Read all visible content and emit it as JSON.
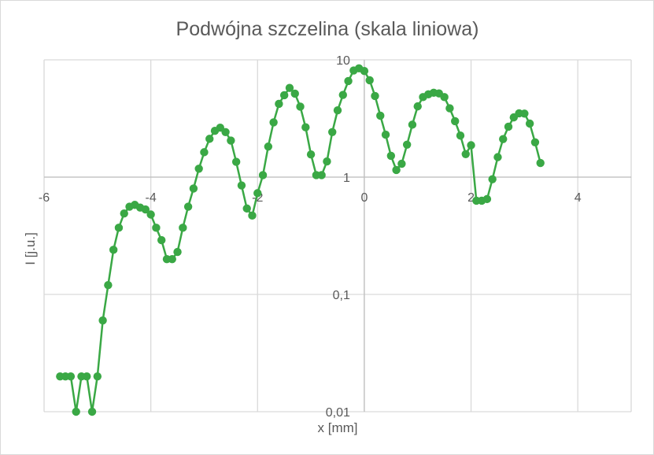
{
  "chart_data": {
    "type": "scatter",
    "title": "Podwójna szczelina (skala liniowa)",
    "xlabel": "x [mm]",
    "ylabel": "I [j.u.]",
    "xlim": [
      -6,
      5
    ],
    "ylim": [
      0.01,
      10
    ],
    "y_scale": "log",
    "x_ticks": [
      -6,
      -4,
      -2,
      0,
      2,
      4
    ],
    "x_tick_labels": [
      "-6",
      "-4",
      "-2",
      "0",
      "2",
      "4"
    ],
    "y_ticks": [
      0.01,
      0.1,
      1,
      10
    ],
    "y_tick_labels": [
      "0,01",
      "0,1",
      "1",
      "10"
    ],
    "grid": true,
    "legend": false,
    "marker_color": "#3aa845",
    "series": [
      {
        "x": [
          -5.7,
          -5.6,
          -5.5,
          -5.4,
          -5.3,
          -5.2,
          -5.1,
          -5.0,
          -4.9,
          -4.8,
          -4.7,
          -4.6,
          -4.5,
          -4.4,
          -4.3,
          -4.2,
          -4.1,
          -4.0,
          -3.9,
          -3.8,
          -3.7,
          -3.6,
          -3.5,
          -3.4,
          -3.3,
          -3.2,
          -3.1,
          -3.0,
          -2.9,
          -2.8,
          -2.7,
          -2.6,
          -2.5,
          -2.4,
          -2.3,
          -2.2,
          -2.1,
          -2.0,
          -1.9,
          -1.8,
          -1.7,
          -1.6,
          -1.5,
          -1.4,
          -1.3,
          -1.2,
          -1.1,
          -1.0,
          -0.9,
          -0.8,
          -0.7,
          -0.6,
          -0.5,
          -0.4,
          -0.3,
          -0.2,
          -0.1,
          0.0,
          0.1,
          0.2,
          0.3,
          0.4,
          0.5,
          0.6,
          0.7,
          0.8,
          0.9,
          1.0,
          1.1,
          1.2,
          1.3,
          1.4,
          1.5,
          1.6,
          1.7,
          1.8,
          1.9,
          2.0,
          2.1,
          2.2,
          2.3,
          2.4,
          2.5,
          2.6,
          2.7,
          2.8,
          2.9,
          3.0,
          3.1,
          3.2,
          3.3
        ],
        "y": [
          0.02,
          0.02,
          0.02,
          0.01,
          0.02,
          0.02,
          0.01,
          0.02,
          0.06,
          0.12,
          0.24,
          0.37,
          0.49,
          0.56,
          0.58,
          0.55,
          0.53,
          0.48,
          0.37,
          0.29,
          0.2,
          0.2,
          0.23,
          0.37,
          0.56,
          0.8,
          1.18,
          1.63,
          2.12,
          2.48,
          2.64,
          2.42,
          2.05,
          1.35,
          0.85,
          0.54,
          0.47,
          0.73,
          1.04,
          1.82,
          2.93,
          4.21,
          4.99,
          5.76,
          5.15,
          3.99,
          2.66,
          1.56,
          1.04,
          1.04,
          1.36,
          2.42,
          3.71,
          5.02,
          6.59,
          8.11,
          8.46,
          8.03,
          6.7,
          4.92,
          3.34,
          2.3,
          1.52,
          1.15,
          1.3,
          1.89,
          2.8,
          4.01,
          4.81,
          5.08,
          5.24,
          5.17,
          4.81,
          3.86,
          3.0,
          2.26,
          1.57,
          1.87,
          0.63,
          0.63,
          0.65,
          0.96,
          1.48,
          2.11,
          2.69,
          3.23,
          3.5,
          3.48,
          2.86,
          1.98,
          1.32
        ]
      }
    ]
  }
}
